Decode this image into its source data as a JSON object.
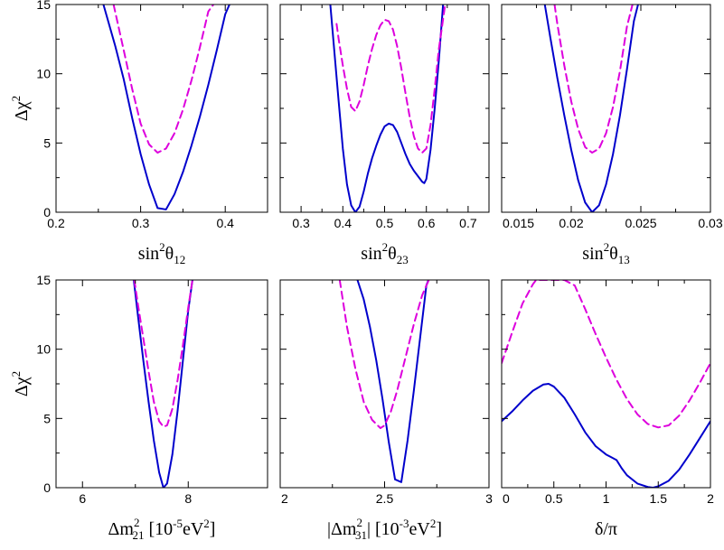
{
  "chart_data": [
    {
      "type": "line",
      "title": "",
      "xlabel": "sin²θ₁₂",
      "xlabel_parts": {
        "base": "sin",
        "sup": "2",
        "symbol": "θ",
        "sub": "12"
      },
      "ylabel": "Δχ²",
      "ylabel_parts": {
        "base": "Δχ",
        "sup": "2"
      },
      "xlim": [
        0.2,
        0.45
      ],
      "ylim": [
        0,
        15
      ],
      "xticks": [
        0.2,
        0.3,
        0.4
      ],
      "xtick_labels": [
        "0.2",
        "0.3",
        "0.4"
      ],
      "yticks": [
        0,
        5,
        10,
        15
      ],
      "ytick_labels": [
        "0",
        "5",
        "10",
        "15"
      ],
      "series": [
        {
          "name": "solid",
          "style": "solid",
          "color": "#0000cc",
          "x": [
            0.256,
            0.27,
            0.28,
            0.29,
            0.3,
            0.31,
            0.32,
            0.33,
            0.34,
            0.35,
            0.36,
            0.37,
            0.38,
            0.39,
            0.4,
            0.405
          ],
          "y": [
            15,
            12.0,
            9.6,
            6.8,
            4.2,
            2.0,
            0.3,
            0.2,
            1.3,
            2.9,
            4.8,
            6.9,
            9.2,
            11.7,
            14.3,
            15
          ]
        },
        {
          "name": "dashed",
          "style": "dashed",
          "color": "#dd00dd",
          "x": [
            0.268,
            0.28,
            0.29,
            0.3,
            0.31,
            0.32,
            0.33,
            0.34,
            0.35,
            0.36,
            0.37,
            0.38,
            0.386
          ],
          "y": [
            15,
            11.7,
            8.9,
            6.4,
            4.9,
            4.3,
            4.6,
            5.7,
            7.4,
            9.5,
            11.9,
            14.5,
            15
          ]
        }
      ]
    },
    {
      "type": "line",
      "title": "",
      "xlabel": "sin²θ₂₃",
      "xlabel_parts": {
        "base": "sin",
        "sup": "2",
        "symbol": "θ",
        "sub": "23"
      },
      "ylabel": "",
      "xlim": [
        0.25,
        0.75
      ],
      "ylim": [
        0,
        15
      ],
      "xticks": [
        0.3,
        0.4,
        0.5,
        0.6,
        0.7
      ],
      "xtick_labels": [
        "0.3",
        "0.4",
        "0.5",
        "0.6",
        "0.7"
      ],
      "yticks": [
        0,
        5,
        10,
        15
      ],
      "series": [
        {
          "name": "solid",
          "style": "solid",
          "color": "#0000cc",
          "x": [
            0.37,
            0.38,
            0.39,
            0.4,
            0.41,
            0.42,
            0.43,
            0.44,
            0.45,
            0.46,
            0.47,
            0.48,
            0.49,
            0.5,
            0.51,
            0.52,
            0.53,
            0.54,
            0.55,
            0.56,
            0.57,
            0.58,
            0.59,
            0.595,
            0.6,
            0.61,
            0.62,
            0.63,
            0.64
          ],
          "y": [
            15,
            11.5,
            8.0,
            4.6,
            2.0,
            0.5,
            0.0,
            0.4,
            1.5,
            2.8,
            3.9,
            4.8,
            5.6,
            6.2,
            6.4,
            6.3,
            5.8,
            5.0,
            4.2,
            3.5,
            3.0,
            2.6,
            2.2,
            2.1,
            2.4,
            4.5,
            7.5,
            11.0,
            15.0
          ]
        },
        {
          "name": "dashed",
          "style": "dashed",
          "color": "#dd00dd",
          "x": [
            0.385,
            0.39,
            0.4,
            0.41,
            0.42,
            0.43,
            0.44,
            0.45,
            0.46,
            0.47,
            0.48,
            0.49,
            0.5,
            0.51,
            0.52,
            0.53,
            0.54,
            0.55,
            0.56,
            0.57,
            0.58,
            0.59,
            0.6,
            0.61,
            0.62,
            0.63,
            0.645
          ],
          "y": [
            13.6,
            12.5,
            10.6,
            8.9,
            7.6,
            7.3,
            8.0,
            9.2,
            10.6,
            11.8,
            12.8,
            13.5,
            13.9,
            13.8,
            13.2,
            12.0,
            10.4,
            8.6,
            6.9,
            5.5,
            4.6,
            4.3,
            4.6,
            6.3,
            8.9,
            11.8,
            15.0
          ]
        }
      ]
    },
    {
      "type": "line",
      "title": "",
      "xlabel": "sin²θ₁₃",
      "xlabel_parts": {
        "base": "sin",
        "sup": "2",
        "symbol": "θ",
        "sub": "13"
      },
      "ylabel": "",
      "xlim": [
        0.015,
        0.03
      ],
      "ylim": [
        0,
        15
      ],
      "xticks": [
        0.015,
        0.02,
        0.025,
        0.03
      ],
      "xtick_labels": [
        "0.015",
        "0.02",
        "0.025",
        "0.03"
      ],
      "yticks": [
        0,
        5,
        10,
        15
      ],
      "series": [
        {
          "name": "solid",
          "style": "solid",
          "color": "#0000cc",
          "x": [
            0.0181,
            0.0185,
            0.019,
            0.0195,
            0.02,
            0.0205,
            0.021,
            0.0215,
            0.022,
            0.0225,
            0.023,
            0.0235,
            0.024,
            0.0245,
            0.0248
          ],
          "y": [
            15,
            12.6,
            9.7,
            7.0,
            4.5,
            2.3,
            0.7,
            0.0,
            0.5,
            2.0,
            4.2,
            7.0,
            10.3,
            13.8,
            15
          ]
        },
        {
          "name": "dashed",
          "style": "dashed",
          "color": "#dd00dd",
          "x": [
            0.0188,
            0.019,
            0.0195,
            0.02,
            0.0205,
            0.021,
            0.0215,
            0.022,
            0.0225,
            0.023,
            0.0235,
            0.024,
            0.0244
          ],
          "y": [
            15,
            13.6,
            10.6,
            8.0,
            6.0,
            4.7,
            4.3,
            4.6,
            5.7,
            7.6,
            10.2,
            13.4,
            15
          ]
        }
      ]
    },
    {
      "type": "line",
      "title": "",
      "xlabel": "Δm²₂₁ [10⁻⁵eV²]",
      "xlabel_parts": {
        "base": "Δm",
        "sup": "2",
        "sub": "21",
        "unit": "[10",
        "unit_sup": "-5",
        "unit_mid": "eV",
        "unit_sup2": "2",
        "unit_end": "]"
      },
      "ylabel": "Δχ²",
      "ylabel_parts": {
        "base": "Δχ",
        "sup": "2"
      },
      "xlim": [
        5.5,
        9.5
      ],
      "ylim": [
        0,
        15
      ],
      "xticks": [
        6,
        8
      ],
      "xtick_labels": [
        "6",
        "8"
      ],
      "yticks": [
        0,
        5,
        10,
        15
      ],
      "ytick_labels": [
        "0",
        "5",
        "10",
        "15"
      ],
      "series": [
        {
          "name": "solid",
          "style": "solid",
          "color": "#0000cc",
          "x": [
            6.97,
            7.05,
            7.15,
            7.25,
            7.35,
            7.45,
            7.53,
            7.6,
            7.7,
            7.8,
            7.9,
            8.0,
            8.08
          ],
          "y": [
            15,
            12.4,
            9.2,
            6.2,
            3.4,
            1.1,
            0.0,
            0.3,
            2.4,
            5.6,
            9.2,
            12.8,
            15
          ]
        },
        {
          "name": "dashed",
          "style": "dashed",
          "color": "#dd00dd",
          "x": [
            6.98,
            7.05,
            7.15,
            7.25,
            7.35,
            7.45,
            7.53,
            7.6,
            7.7,
            7.8,
            7.9,
            8.0,
            8.08
          ],
          "y": [
            15,
            13.2,
            10.8,
            8.4,
            6.2,
            4.8,
            4.4,
            4.5,
            5.7,
            7.8,
            10.3,
            13.0,
            15
          ]
        }
      ]
    },
    {
      "type": "line",
      "title": "",
      "xlabel": "|Δm²₃₁| [10⁻³eV²]",
      "xlabel_parts": {
        "bar": "|",
        "base": "Δm",
        "sup": "2",
        "sub": "31",
        "unit": "[10",
        "unit_sup": "-3",
        "unit_mid": "eV",
        "unit_sup2": "2",
        "unit_end": "]"
      },
      "ylabel": "",
      "xlim": [
        2,
        3
      ],
      "ylim": [
        0,
        15
      ],
      "xticks": [
        2,
        2.5,
        3
      ],
      "xtick_labels": [
        "2",
        "2.5",
        "3"
      ],
      "yticks": [
        0,
        5,
        10,
        15
      ],
      "series": [
        {
          "name": "solid",
          "style": "solid",
          "color": "#0000cc",
          "x": [
            2.37,
            2.4,
            2.43,
            2.46,
            2.49,
            2.52,
            2.55,
            2.58,
            2.61,
            2.64,
            2.67,
            2.7,
            2.71
          ],
          "y": [
            15,
            13.6,
            11.6,
            9.2,
            6.4,
            3.3,
            0.6,
            0.4,
            3.4,
            7.0,
            10.8,
            14.6,
            15
          ]
        },
        {
          "name": "dashed",
          "style": "dashed",
          "color": "#dd00dd",
          "x": [
            2.285,
            2.32,
            2.36,
            2.4,
            2.44,
            2.48,
            2.5,
            2.53,
            2.56,
            2.6,
            2.64,
            2.68,
            2.712
          ],
          "y": [
            15,
            11.6,
            8.6,
            6.2,
            4.9,
            4.3,
            4.5,
            5.5,
            7.0,
            9.4,
            11.8,
            13.9,
            15
          ]
        }
      ]
    },
    {
      "type": "line",
      "title": "",
      "xlabel": "δ/π",
      "xlabel_parts": {
        "base": "δ/π"
      },
      "ylabel": "",
      "xlim": [
        0,
        2
      ],
      "ylim": [
        0,
        15
      ],
      "xticks": [
        0,
        0.5,
        1,
        1.5,
        2
      ],
      "xtick_labels": [
        "0",
        "0.5",
        "1",
        "1.5",
        "2"
      ],
      "yticks": [
        0,
        5,
        10,
        15
      ],
      "series": [
        {
          "name": "solid",
          "style": "solid",
          "color": "#0000cc",
          "x": [
            0.0,
            0.1,
            0.2,
            0.3,
            0.4,
            0.45,
            0.5,
            0.6,
            0.7,
            0.8,
            0.9,
            1.0,
            1.05,
            1.1,
            1.15,
            1.2,
            1.3,
            1.4,
            1.45,
            1.5,
            1.6,
            1.7,
            1.8,
            1.9,
            2.0
          ],
          "y": [
            4.8,
            5.5,
            6.3,
            7.0,
            7.45,
            7.5,
            7.3,
            6.5,
            5.3,
            4.0,
            3.0,
            2.4,
            2.2,
            2.0,
            1.4,
            0.9,
            0.3,
            0.05,
            0.0,
            0.1,
            0.5,
            1.3,
            2.4,
            3.6,
            4.8
          ]
        },
        {
          "name": "dashed",
          "style": "dashed",
          "color": "#dd00dd",
          "x": [
            0.0,
            0.1,
            0.2,
            0.3,
            0.33,
            0.5,
            0.6,
            0.7,
            0.8,
            0.9,
            1.0,
            1.1,
            1.2,
            1.3,
            1.4,
            1.5,
            1.6,
            1.7,
            1.8,
            1.9,
            2.0
          ],
          "y": [
            9.0,
            11.2,
            13.3,
            14.7,
            15.0,
            15.0,
            15.0,
            14.6,
            12.9,
            11.1,
            9.4,
            7.8,
            6.4,
            5.3,
            4.6,
            4.35,
            4.5,
            5.2,
            6.3,
            7.6,
            9.0
          ]
        }
      ]
    }
  ]
}
